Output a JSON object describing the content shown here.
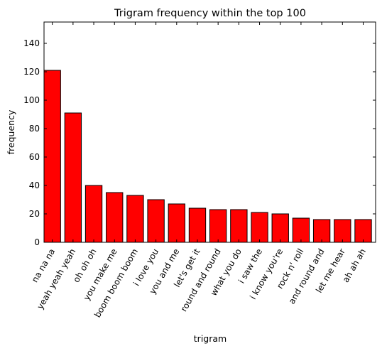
{
  "chart_data": {
    "type": "bar",
    "title": "Trigram frequency within the top 100",
    "xlabel": "trigram",
    "ylabel": "frequency",
    "ylim": [
      0,
      155
    ],
    "yticks": [
      0,
      20,
      40,
      60,
      80,
      100,
      120,
      140
    ],
    "grid": false,
    "bar_color": "#ff0000",
    "edge_color": "#000000",
    "categories": [
      "na na na",
      "yeah yeah yeah",
      "oh oh oh",
      "you make me",
      "boom boom boom",
      "i love you",
      "you and me",
      "let's get it",
      "round and round",
      "what you do",
      "i saw the",
      "i know you're",
      "rock n' roll",
      "and round and",
      "let me hear",
      "ah ah ah"
    ],
    "values": [
      121,
      91,
      40,
      35,
      33,
      30,
      27,
      24,
      23,
      23,
      21,
      20,
      17,
      16,
      16,
      16
    ]
  }
}
